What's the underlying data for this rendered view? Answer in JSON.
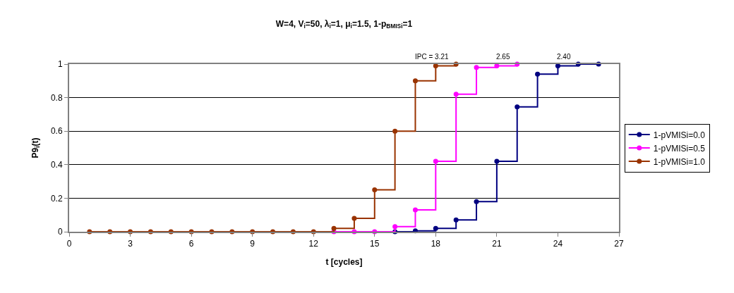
{
  "chart_data": {
    "type": "step",
    "title": "W=4, V$_{i}$=50, λ$_{i}$=1, μ$_{i}$=1.5, 1-p$_{BMISi}$=1",
    "xlabel": "t [cycles]",
    "ylabel": "P9$_{i}$(t)",
    "x": [
      1,
      2,
      3,
      4,
      5,
      6,
      7,
      8,
      9,
      10,
      11,
      12,
      13,
      14,
      15,
      16,
      17,
      18,
      19,
      20,
      21,
      22,
      23,
      24,
      25,
      26
    ],
    "series": [
      {
        "name": "1-pVMISi=0.0",
        "color": "#000080",
        "values": [
          null,
          null,
          null,
          null,
          null,
          null,
          null,
          null,
          null,
          null,
          null,
          null,
          null,
          null,
          null,
          0,
          0.005,
          0.02,
          0.07,
          0.18,
          0.42,
          0.745,
          0.94,
          0.99,
          1.0,
          1.0
        ]
      },
      {
        "name": "1-pVMISi=0.5",
        "color": "#ff00ff",
        "values": [
          null,
          null,
          null,
          null,
          null,
          null,
          null,
          null,
          null,
          null,
          null,
          null,
          0,
          0,
          0,
          0.03,
          0.13,
          0.42,
          0.82,
          0.98,
          0.99,
          1.0,
          null,
          null,
          null,
          null
        ]
      },
      {
        "name": "1-pVMISi=1.0",
        "color": "#993300",
        "values": [
          0,
          0,
          0,
          0,
          0,
          0,
          0,
          0,
          0,
          0,
          0,
          0,
          0.02,
          0.08,
          0.25,
          0.6,
          0.9,
          0.99,
          1.0,
          null,
          null,
          null,
          null,
          null,
          null,
          null
        ]
      }
    ],
    "annotations": [
      "IPC = 3.21",
      "2.65",
      "2.40"
    ],
    "xlim": [
      0,
      27
    ],
    "xticks": [
      0,
      3,
      6,
      9,
      12,
      15,
      18,
      21,
      24,
      27
    ],
    "ylim": [
      0,
      1
    ],
    "yticks": [
      0,
      0.2,
      0.4,
      0.6,
      0.8,
      1
    ],
    "grid": "y",
    "legend": "right",
    "marker": "circle",
    "line_style": "solid"
  }
}
